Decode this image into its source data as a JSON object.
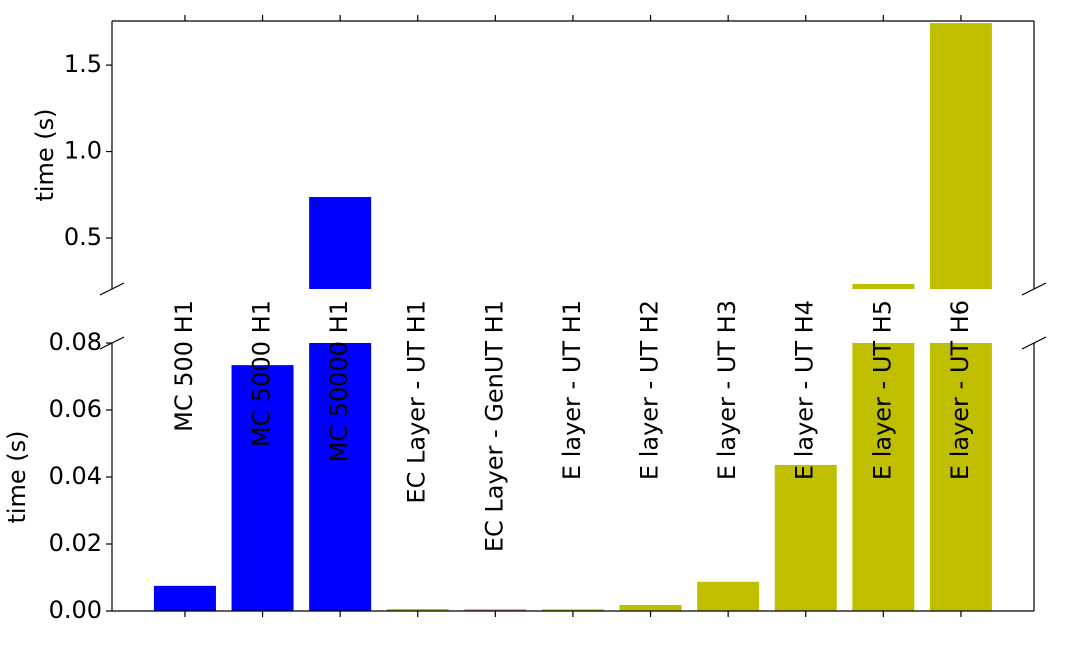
{
  "chart_data": {
    "type": "broken-bar",
    "categories": [
      "MC 500 H1",
      "MC 5000 H1",
      "MC 50000 H1",
      "EC Layer - UT H1",
      "EC Layer - GenUT H1",
      "E layer - UT H1",
      "E layer - UT H2",
      "E layer - UT H3",
      "E layer - UT H4",
      "E layer - UT H5",
      "E layer - UT H6"
    ],
    "values": [
      0.0075,
      0.0734,
      0.737,
      0.0006,
      0.0005,
      0.0005,
      0.0018,
      0.0087,
      0.0436,
      0.234,
      1.743
    ],
    "colors": [
      "#0000ff",
      "#0000ff",
      "#0000ff",
      "#bfbf00",
      "#e08080",
      "#bfbf00",
      "#bfbf00",
      "#bfbf00",
      "#bfbf00",
      "#bfbf00",
      "#bfbf00"
    ],
    "panels": [
      {
        "ylabel": "time (s)",
        "ylim": [
          0.205,
          1.755
        ],
        "yticks": [
          0.5,
          {
            "value": 1.0,
            "label": "1.0"
          },
          1.5
        ]
      },
      {
        "ylabel": "time (s)",
        "ylim": [
          0,
          0.08
        ],
        "yticks": [
          {
            "value": 0,
            "label": "0.00"
          },
          0.02,
          0.04,
          0.06,
          0.08
        ]
      }
    ]
  }
}
